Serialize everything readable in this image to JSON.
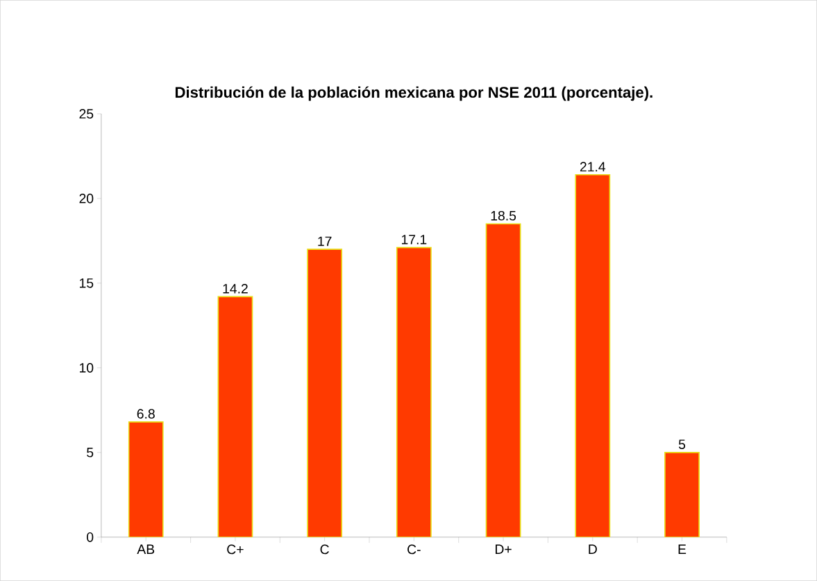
{
  "chart_data": {
    "type": "bar",
    "title": "Distribución de la población mexicana por NSE 2011 (porcentaje).",
    "categories": [
      "AB",
      "C+",
      "C",
      "C-",
      "D+",
      "D",
      "E"
    ],
    "values": [
      6.8,
      14.2,
      17,
      17.1,
      18.5,
      21.4,
      5
    ],
    "color": "#ff3a00",
    "ylim": [
      0,
      25
    ],
    "yticks": [
      0,
      5,
      10,
      15,
      20,
      25
    ],
    "data_labels": true
  }
}
